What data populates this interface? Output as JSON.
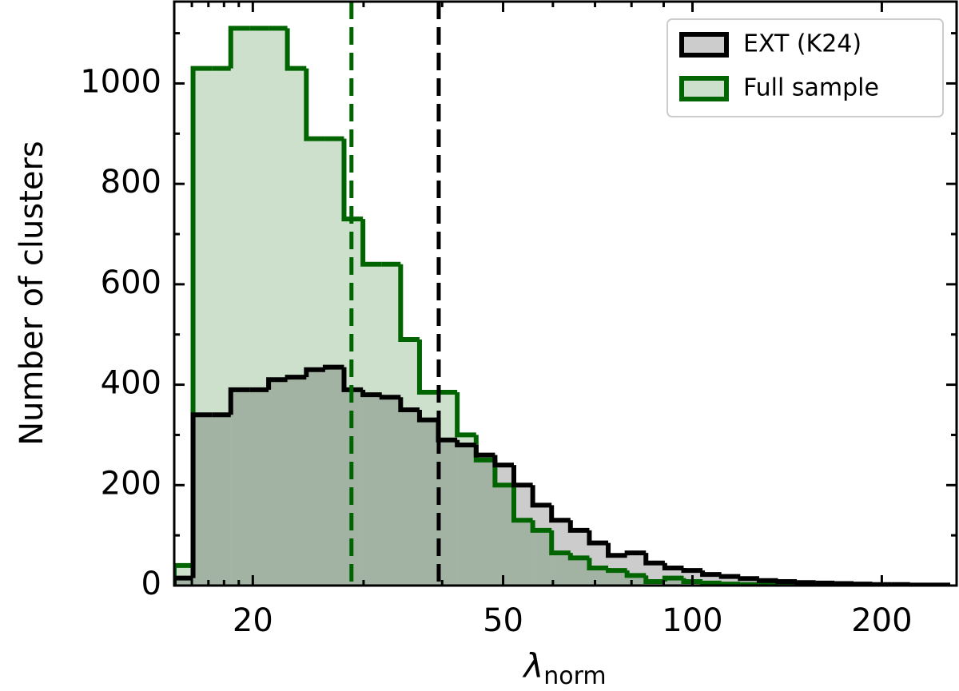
{
  "chart_data": {
    "type": "histogram",
    "xlabel": "λ",
    "xlabel_sub": "norm",
    "ylabel": "Number of clusters",
    "xscale": "log",
    "xlim": [
      15,
      263
    ],
    "ylim": [
      0,
      1163
    ],
    "xticks": [
      20,
      50,
      100,
      200
    ],
    "xminorticks": [
      16,
      17,
      18,
      19,
      30,
      40,
      60,
      70,
      80,
      90
    ],
    "yticks": [
      0,
      200,
      400,
      600,
      800,
      1000
    ],
    "yminorticks": [
      100,
      300,
      500,
      700,
      900,
      1100
    ],
    "legend": "upper right",
    "fill_alpha": 0.2,
    "bins": [
      15,
      16.07,
      17.22,
      18.45,
      19.77,
      21.19,
      22.7,
      24.33,
      26.07,
      27.93,
      29.93,
      32.07,
      34.36,
      36.82,
      39.45,
      42.27,
      45.3,
      48.54,
      52.01,
      55.73,
      59.71,
      63.98,
      68.56,
      73.46,
      78.71,
      84.34,
      90.37,
      96.83,
      103.76,
      111.18,
      119.13,
      127.65,
      136.78,
      146.56,
      157.04,
      168.27,
      180.31,
      193.2,
      207.02,
      221.82,
      237.69,
      254.69
    ],
    "series": [
      {
        "name": "EXT (K24)",
        "color": "#000000",
        "values": [
          15,
          340,
          340,
          390,
          390,
          410,
          415,
          430,
          435,
          390,
          380,
          375,
          350,
          330,
          290,
          280,
          260,
          240,
          200,
          160,
          130,
          110,
          85,
          60,
          65,
          45,
          35,
          30,
          22,
          18,
          14,
          10,
          8,
          6,
          5,
          4,
          3,
          2,
          2,
          1,
          1
        ]
      },
      {
        "name": "Full sample",
        "color": "#006400",
        "values": [
          40,
          1030,
          1030,
          1110,
          1110,
          1110,
          1030,
          890,
          890,
          730,
          640,
          640,
          490,
          385,
          385,
          300,
          250,
          200,
          130,
          110,
          65,
          55,
          35,
          30,
          20,
          8,
          15,
          8,
          5,
          3,
          2,
          2,
          1,
          1,
          1,
          1,
          1,
          0,
          0,
          0,
          0
        ]
      }
    ],
    "vlines": [
      {
        "x": 39.5,
        "color": "#000000"
      },
      {
        "x": 28.7,
        "color": "#006400"
      }
    ]
  }
}
